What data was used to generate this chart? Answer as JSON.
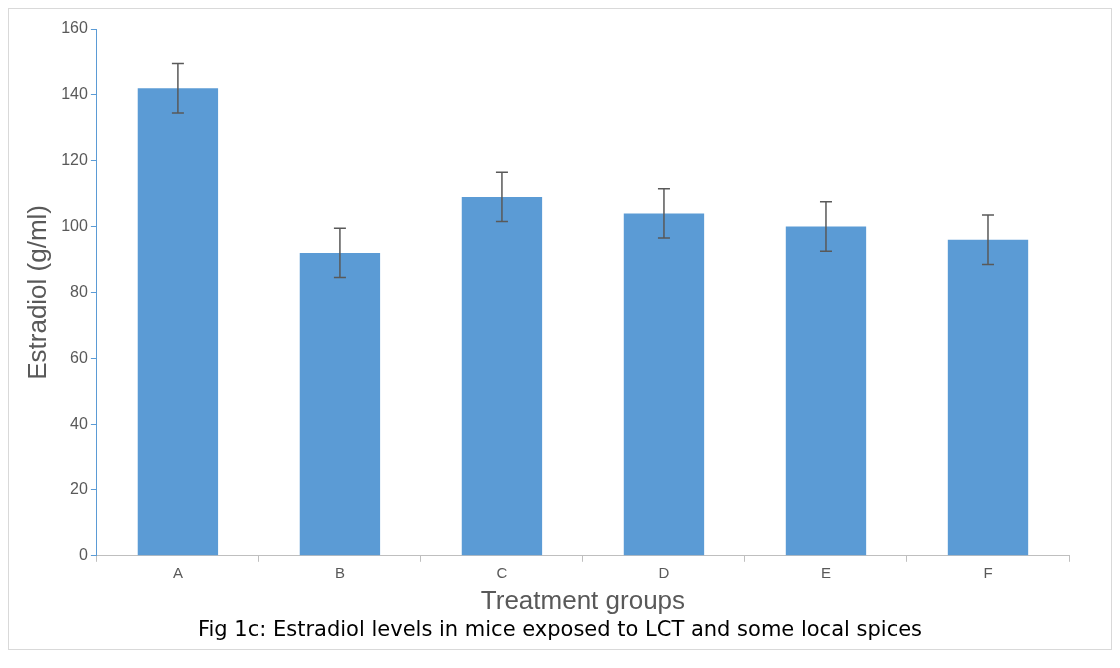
{
  "chart_data": {
    "type": "bar",
    "categories": [
      "A",
      "B",
      "C",
      "D",
      "E",
      "F"
    ],
    "values": [
      142,
      92,
      109,
      104,
      100,
      96
    ],
    "errors": [
      7.5,
      7.5,
      7.5,
      7.5,
      7.5,
      7.5
    ],
    "color": "#5b9bd5",
    "xlabel": "Treatment groups",
    "ylabel": "Estradiol (g/ml)",
    "ylim": [
      0,
      160
    ],
    "yticks": [
      0,
      20,
      40,
      60,
      80,
      100,
      120,
      140,
      160
    ],
    "grid": false,
    "legend": false,
    "annotations": [
      "Fig 1c: Estradiol levels in mice exposed to LCT and some local spices"
    ]
  }
}
